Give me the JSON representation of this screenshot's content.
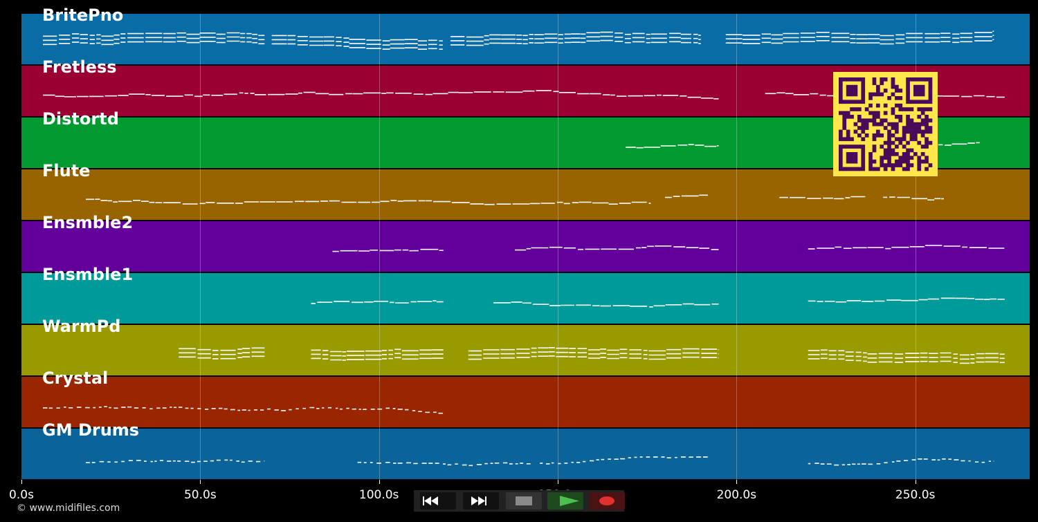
{
  "tracks": [
    {
      "name": "BritePno",
      "color": "#0a6ca6"
    },
    {
      "name": "Fretless",
      "color": "#9b0033"
    },
    {
      "name": "Distortd",
      "color": "#009a30"
    },
    {
      "name": "Flute",
      "color": "#996300"
    },
    {
      "name": "Ensmble2",
      "color": "#63009b"
    },
    {
      "name": "Ensmble1",
      "color": "#009a9a"
    },
    {
      "name": "WarmPd",
      "color": "#999a00"
    },
    {
      "name": "Crystal",
      "color": "#992600"
    },
    {
      "name": "GM Drums",
      "color": "#0a6399"
    }
  ],
  "time_axis": {
    "ticks": [
      "0.0s",
      "50.0s",
      "100.0s",
      "150.0s",
      "200.0s",
      "250.0s"
    ],
    "max_seconds": 282
  },
  "footer": {
    "copyright": "© www.midifiles.com"
  },
  "controls": [
    {
      "name": "rewind-button",
      "icon": "rewind-icon",
      "color": "#111111",
      "accent": "#ffffff"
    },
    {
      "name": "fast-forward-button",
      "icon": "fast-forward-icon",
      "color": "#111111",
      "accent": "#ffffff"
    },
    {
      "name": "stop-button",
      "icon": "stop-icon",
      "color": "#333333",
      "accent": "#8a8a8a"
    },
    {
      "name": "play-button",
      "icon": "play-icon",
      "color": "#1c4a1c",
      "accent": "#4cbf4c"
    },
    {
      "name": "record-button",
      "icon": "record-icon",
      "color": "#4a1212",
      "accent": "#e03030"
    }
  ],
  "qr_code": {
    "fg": "#4a0a5a",
    "bg": "#ffe64a"
  },
  "note_segments": {
    "BritePno": [
      [
        6,
        68
      ],
      [
        70,
        118
      ],
      [
        120,
        190
      ],
      [
        197,
        272
      ]
    ],
    "Fretless": [
      [
        6,
        195
      ],
      [
        208,
        275
      ]
    ],
    "Distortd": [
      [
        169,
        195
      ],
      [
        248,
        268
      ]
    ],
    "Flute": [
      [
        18,
        176
      ],
      [
        180,
        192
      ],
      [
        212,
        236
      ],
      [
        241,
        258
      ]
    ],
    "Ensmble2": [
      [
        87,
        118
      ],
      [
        138,
        195
      ],
      [
        220,
        275
      ]
    ],
    "Ensmble1": [
      [
        81,
        118
      ],
      [
        132,
        195
      ],
      [
        220,
        275
      ]
    ],
    "WarmPd": [
      [
        44,
        68
      ],
      [
        81,
        118
      ],
      [
        125,
        195
      ],
      [
        220,
        275
      ]
    ],
    "Crystal": [
      [
        6,
        118
      ]
    ],
    "GM Drums": [
      [
        18,
        68
      ],
      [
        94,
        143
      ],
      [
        145,
        192
      ],
      [
        220,
        272
      ]
    ]
  }
}
